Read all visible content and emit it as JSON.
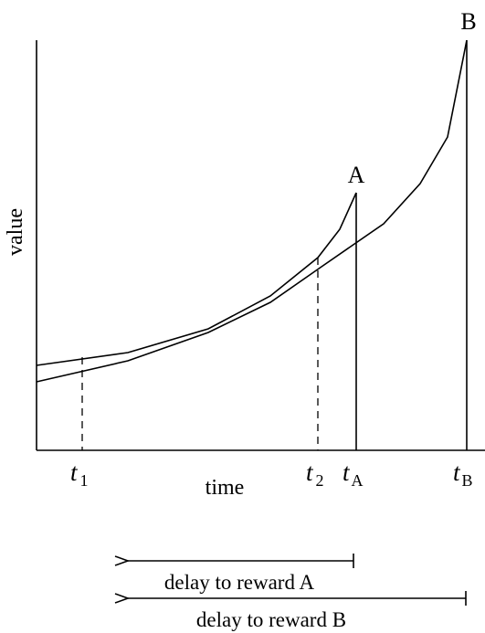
{
  "labels": {
    "y_axis": "value",
    "x_axis": "time",
    "peak_a": "A",
    "peak_b": "B"
  },
  "ticks": {
    "t1": {
      "main": "t",
      "sub": "1"
    },
    "t2": {
      "main": "t",
      "sub": "2"
    },
    "tA": {
      "main": "t",
      "sub": "A"
    },
    "tB": {
      "main": "t",
      "sub": "B"
    }
  },
  "delays": {
    "a": "delay to reward A",
    "b": "delay to reward B"
  }
}
